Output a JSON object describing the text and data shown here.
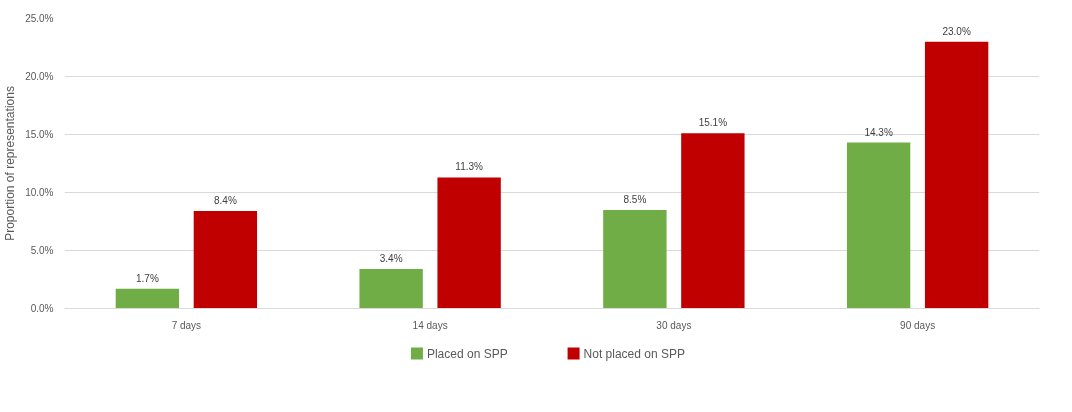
{
  "chart_data": {
    "type": "bar",
    "ylabel": "Proportion of representations",
    "categories": [
      "7 days",
      "14 days",
      "30 days",
      "90 days"
    ],
    "series": [
      {
        "name": "Placed on SPP",
        "color": "#70ad47",
        "values": [
          1.7,
          3.4,
          8.5,
          14.3
        ],
        "value_labels": [
          "1.7%",
          "3.4%",
          "8.5%",
          "14.3%"
        ]
      },
      {
        "name": "Not placed on SPP",
        "color": "#c00000",
        "values": [
          8.4,
          11.3,
          15.1,
          23.0
        ],
        "value_labels": [
          "8.4%",
          "11.3%",
          "15.1%",
          "23.0%"
        ]
      }
    ],
    "ylim": [
      0,
      25
    ],
    "yticks": [
      {
        "value": 0,
        "label": "0.0%"
      },
      {
        "value": 5,
        "label": "5.0%"
      },
      {
        "value": 10,
        "label": "10.0%"
      },
      {
        "value": 15,
        "label": "15.0%"
      },
      {
        "value": 20,
        "label": "20.0%"
      },
      {
        "value": 25,
        "label": "25.0%"
      }
    ],
    "grid": "y",
    "legend": "bottom"
  }
}
